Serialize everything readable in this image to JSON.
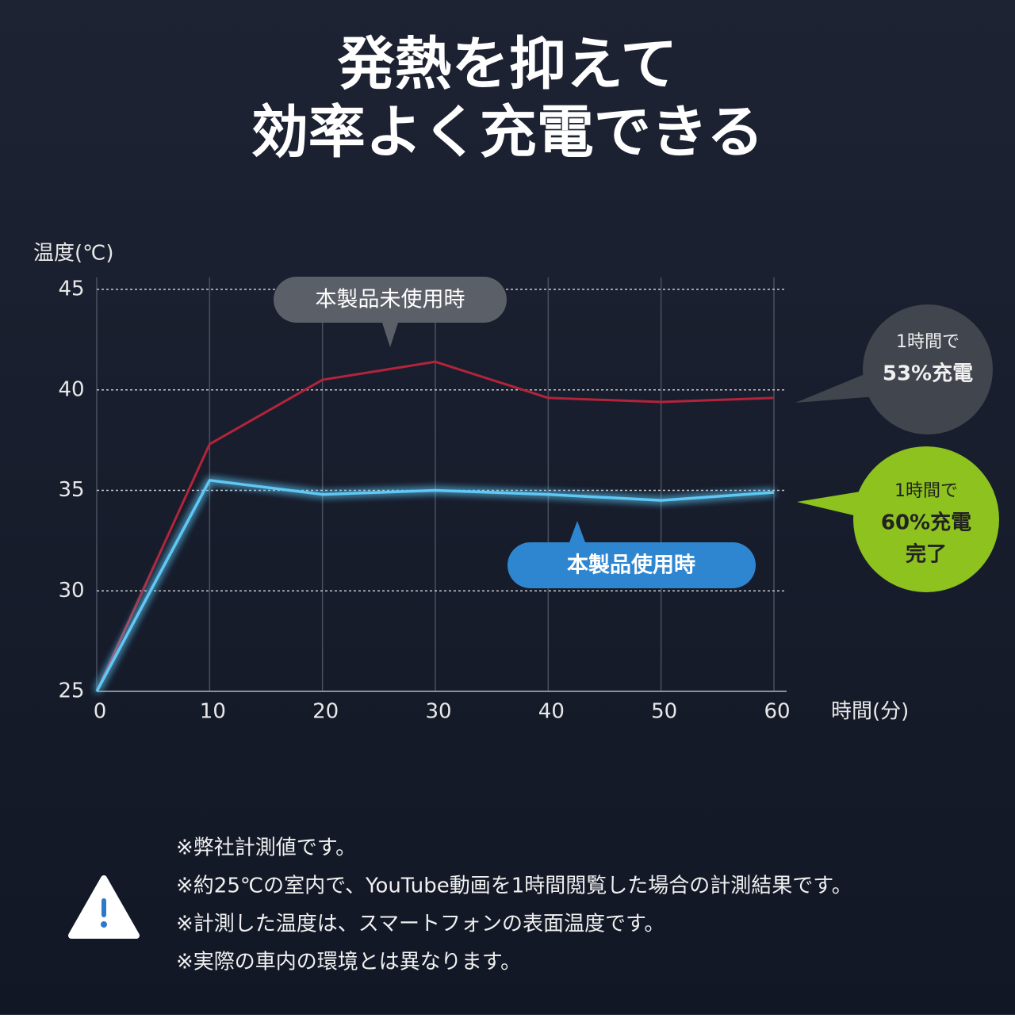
{
  "chart_data": {
    "type": "line",
    "title": [
      "発熱を抑えて",
      "効率よく充電できる"
    ],
    "ylabel": "温度(℃)",
    "xlabel": "時間(分)",
    "x": [
      0,
      10,
      20,
      30,
      40,
      50,
      60
    ],
    "series": [
      {
        "name": "本製品未使用時",
        "color": "#b3243b",
        "values": [
          25,
          37.3,
          40.5,
          41.4,
          39.6,
          39.4,
          39.6
        ]
      },
      {
        "name": "本製品使用時",
        "color": "#5ec8f5",
        "values": [
          25,
          35.5,
          34.8,
          35,
          34.8,
          34.5,
          34.9
        ]
      }
    ],
    "xlim": [
      0,
      60
    ],
    "xticks": [
      0,
      10,
      20,
      30,
      40,
      50,
      60
    ],
    "ylim": [
      25,
      45
    ],
    "yticks": [
      25,
      30,
      35,
      40,
      45
    ],
    "grid": true,
    "annotations": [
      {
        "lines": [
          "1時間で",
          "53%充電"
        ],
        "color": "#40454e"
      },
      {
        "lines": [
          "1時間で",
          "60%充電",
          "完了"
        ],
        "color": "#8dc21f"
      }
    ],
    "notes": [
      "※弊社計測値です。",
      "※約25℃の室内で、YouTube動画を1時間閲覧した場合の計測結果です。",
      "※計測した温度は、スマートフォンの表面温度です。",
      "※実際の車内の環境とは異なります。"
    ]
  }
}
